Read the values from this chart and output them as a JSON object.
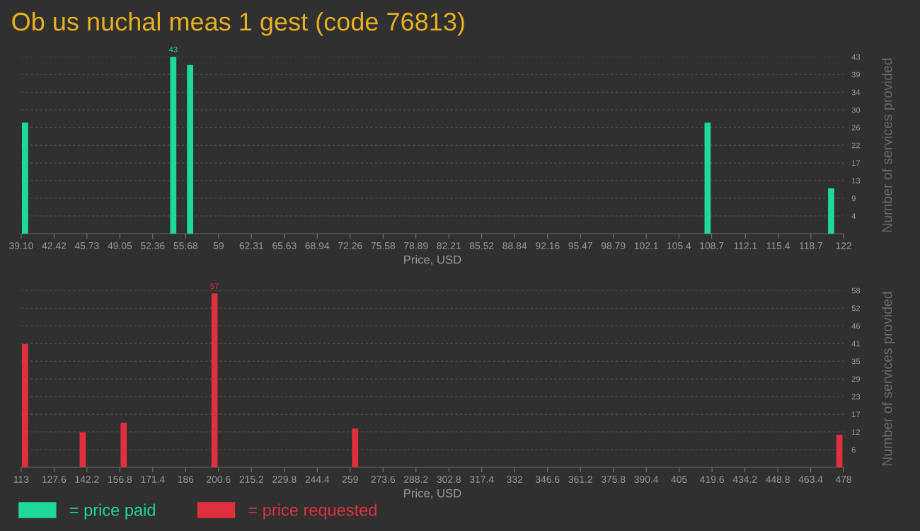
{
  "chart_data": [
    {
      "type": "bar",
      "title": "Ob us nuchal meas 1 gest (code 76813)",
      "xlabel": "Price, USD",
      "ylabel": "Number of services provided",
      "x": [
        39.49,
        54.43,
        56.13,
        108.29,
        120.74
      ],
      "series": [
        {
          "name": "= price paid",
          "color": "#1fd99a",
          "values": [
            27,
            43,
            41,
            27,
            11
          ],
          "value_labels": [
            null,
            "43",
            null,
            null,
            null
          ]
        }
      ],
      "xlim": [
        39.1,
        122
      ],
      "ylim": [
        0,
        43
      ],
      "xticks": [
        {
          "value": 39.1,
          "label": "39.10"
        },
        {
          "value": 42.42,
          "label": "42.42"
        },
        {
          "value": 45.73,
          "label": "45.73"
        },
        {
          "value": 49.05,
          "label": "49.05"
        },
        {
          "value": 52.36,
          "label": "52.36"
        },
        {
          "value": 55.68,
          "label": "55.68"
        },
        {
          "value": 59,
          "label": "59"
        },
        {
          "value": 62.31,
          "label": "62.31"
        },
        {
          "value": 65.63,
          "label": "65.63"
        },
        {
          "value": 68.94,
          "label": "68.94"
        },
        {
          "value": 72.26,
          "label": "72.26"
        },
        {
          "value": 75.58,
          "label": "75.58"
        },
        {
          "value": 78.89,
          "label": "78.89"
        },
        {
          "value": 82.21,
          "label": "82.21"
        },
        {
          "value": 85.52,
          "label": "85.52"
        },
        {
          "value": 88.84,
          "label": "88.84"
        },
        {
          "value": 92.16,
          "label": "92.16"
        },
        {
          "value": 95.47,
          "label": "95.47"
        },
        {
          "value": 98.79,
          "label": "98.79"
        },
        {
          "value": 102.1,
          "label": "102.1"
        },
        {
          "value": 105.4,
          "label": "105.4"
        },
        {
          "value": 108.7,
          "label": "108.7"
        },
        {
          "value": 112.1,
          "label": "112.1"
        },
        {
          "value": 115.4,
          "label": "115.4"
        },
        {
          "value": 118.7,
          "label": "118.7"
        },
        {
          "value": 122,
          "label": "122"
        }
      ],
      "yticks": [
        {
          "value": 4.3,
          "label": "4"
        },
        {
          "value": 8.6,
          "label": "9"
        },
        {
          "value": 12.9,
          "label": "13"
        },
        {
          "value": 17.2,
          "label": "17"
        },
        {
          "value": 21.5,
          "label": "22"
        },
        {
          "value": 25.8,
          "label": "26"
        },
        {
          "value": 30.1,
          "label": "30"
        },
        {
          "value": 34.4,
          "label": "34"
        },
        {
          "value": 38.7,
          "label": "39"
        },
        {
          "value": 43,
          "label": "43"
        }
      ],
      "grid": "y",
      "legend": "bottom left"
    },
    {
      "type": "bar",
      "xlabel": "Price, USD",
      "ylabel": "Number of services provided",
      "x": [
        114.7,
        140.3,
        158.5,
        198.8,
        261.2,
        476.1
      ],
      "series": [
        {
          "name": "= price requested",
          "color": "#e0303f",
          "values": [
            40.4,
            11.5,
            14.6,
            57,
            12.7,
            10.7
          ],
          "value_labels": [
            null,
            null,
            null,
            "57",
            null,
            null
          ]
        }
      ],
      "xlim": [
        113,
        478
      ],
      "ylim": [
        0,
        58
      ],
      "xticks": [
        113,
        127.6,
        142.2,
        156.8,
        171.4,
        186,
        200.6,
        215.2,
        229.8,
        244.4,
        259,
        273.6,
        288.2,
        302.8,
        317.4,
        332,
        346.6,
        361.2,
        375.8,
        390.4,
        405,
        419.6,
        434.2,
        448.8,
        463.4,
        478
      ],
      "yticks": [
        {
          "value": 5.8,
          "label": "6"
        },
        {
          "value": 11.6,
          "label": "12"
        },
        {
          "value": 17.4,
          "label": "17"
        },
        {
          "value": 23.2,
          "label": "23"
        },
        {
          "value": 29,
          "label": "29"
        },
        {
          "value": 34.8,
          "label": "35"
        },
        {
          "value": 40.6,
          "label": "41"
        },
        {
          "value": 46.4,
          "label": "46"
        },
        {
          "value": 52.2,
          "label": "52"
        },
        {
          "value": 58,
          "label": "58"
        }
      ],
      "grid": "y",
      "legend": "bottom left"
    }
  ]
}
